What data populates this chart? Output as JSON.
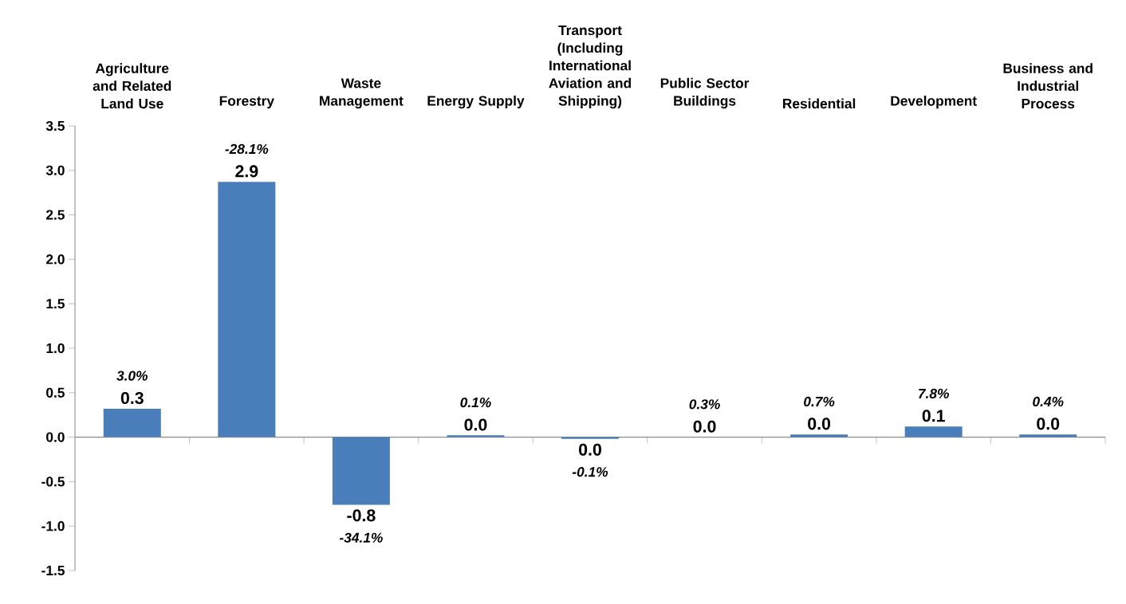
{
  "chart_data": {
    "type": "bar",
    "categories": [
      "Agriculture and Related Land Use",
      "Forestry",
      "Waste Management",
      "Energy Supply",
      "Transport (Including International Aviation and Shipping)",
      "Public Sector Buildings",
      "Residential",
      "Development",
      "Business and Industrial Process"
    ],
    "values": [
      0.32,
      2.87,
      -0.76,
      0.02,
      -0.02,
      0.0,
      0.03,
      0.12,
      0.03
    ],
    "value_labels": [
      "0.3",
      "2.9",
      "-0.8",
      "0.0",
      "0.0",
      "0.0",
      "0.0",
      "0.1",
      "0.0"
    ],
    "color": "#4a7ebb",
    "ylim": [
      -1.5,
      3.5
    ],
    "yticks": [
      {
        "value": -1.5,
        "label": "-1.5"
      },
      {
        "value": -1.0,
        "label": "-1.0"
      },
      {
        "value": -0.5,
        "label": "-0.5"
      },
      {
        "value": 0.0,
        "label": "0.0"
      },
      {
        "value": 0.5,
        "label": "0.5"
      },
      {
        "value": 1.0,
        "label": "1.0"
      },
      {
        "value": 1.5,
        "label": "1.5"
      },
      {
        "value": 2.0,
        "label": "2.0"
      },
      {
        "value": 2.5,
        "label": "2.5"
      },
      {
        "value": 3.0,
        "label": "3.0"
      },
      {
        "value": 3.5,
        "label": "3.5"
      }
    ],
    "annotations": [
      {
        "text": "3.0%",
        "x": "Agriculture and Related Land Use",
        "y": 0.32
      },
      {
        "text": "-28.1%",
        "x": "Forestry",
        "y": 2.87
      },
      {
        "text": "-34.1%",
        "x": "Waste Management",
        "y": -0.76
      },
      {
        "text": "0.1%",
        "x": "Energy Supply",
        "y": 0.02
      },
      {
        "text": "-0.1%",
        "x": "Transport (Including International Aviation and Shipping)",
        "y": -0.02
      },
      {
        "text": "0.3%",
        "x": "Public Sector Buildings",
        "y": 0.0
      },
      {
        "text": "0.7%",
        "x": "Residential",
        "y": 0.03
      },
      {
        "text": "7.8%",
        "x": "Development",
        "y": 0.12
      },
      {
        "text": "0.4%",
        "x": "Business and Industrial Process",
        "y": 0.03
      }
    ]
  }
}
